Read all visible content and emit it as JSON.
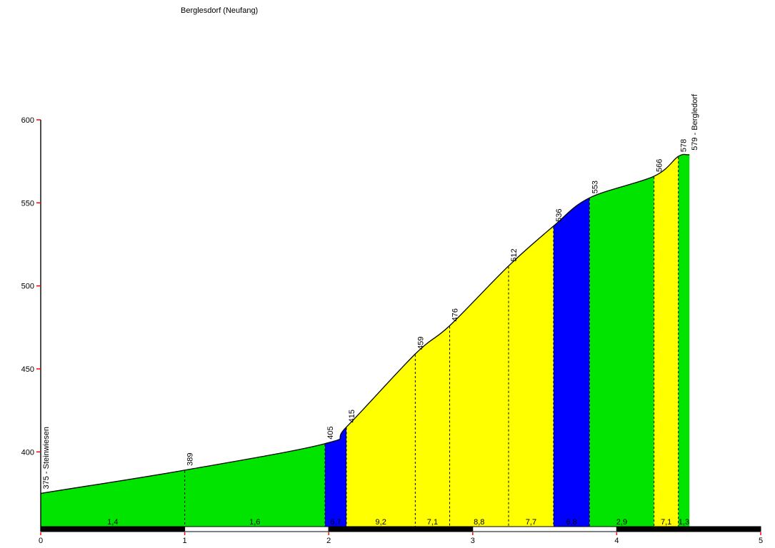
{
  "title": "Berglesdorf (Neufang)",
  "chart_data": {
    "type": "area",
    "title": "Berglesdorf (Neufang)",
    "start_label": "375 - Steinwiesen",
    "end_label": "579 - Bergledorf",
    "x_unit": "km",
    "xlim": [
      0,
      5
    ],
    "x_ticks": [
      "0",
      "1",
      "2",
      "3",
      "4",
      "5"
    ],
    "y_ticks": [
      "400",
      "450",
      "500",
      "550",
      "600"
    ],
    "ylim_display": [
      355,
      605
    ],
    "grid": "off",
    "legend": "none",
    "colors": {
      "green": "#00e400",
      "blue": "#0000ff",
      "yellow": "#ffff00"
    },
    "axis_color": "#000000",
    "tick_mark_color": "#ff0000",
    "km_bar_colors": [
      "#000000",
      "#ffffff",
      "#000000",
      "#ffffff",
      "#000000"
    ],
    "points": [
      {
        "km": 0.0,
        "elev": 375
      },
      {
        "km": 1.0,
        "elev": 389
      },
      {
        "km": 1.974,
        "elev": 405
      },
      {
        "km": 2.123,
        "elev": 415
      },
      {
        "km": 2.601,
        "elev": 459
      },
      {
        "km": 2.84,
        "elev": 476
      },
      {
        "km": 3.249,
        "elev": 512
      },
      {
        "km": 3.561,
        "elev": 536
      },
      {
        "km": 3.811,
        "elev": 553
      },
      {
        "km": 4.259,
        "elev": 566
      },
      {
        "km": 4.428,
        "elev": 578
      },
      {
        "km": 4.505,
        "elev": 579
      }
    ],
    "elevation_labels": [
      "389",
      "405",
      "415",
      "459",
      "476",
      "512",
      "536",
      "553",
      "566",
      "578"
    ],
    "segments": [
      {
        "from_km": 0.0,
        "to_km": 1.0,
        "from_elev": 375,
        "to_elev": 389,
        "gradient": "1,4",
        "color": "green"
      },
      {
        "from_km": 1.0,
        "to_km": 1.974,
        "from_elev": 389,
        "to_elev": 405,
        "gradient": "1,6",
        "color": "green"
      },
      {
        "from_km": 1.974,
        "to_km": 2.123,
        "from_elev": 405,
        "to_elev": 415,
        "gradient": "6,7",
        "color": "blue"
      },
      {
        "from_km": 2.123,
        "to_km": 2.601,
        "from_elev": 415,
        "to_elev": 459,
        "gradient": "9,2",
        "color": "yellow"
      },
      {
        "from_km": 2.601,
        "to_km": 2.84,
        "from_elev": 459,
        "to_elev": 476,
        "gradient": "7,1",
        "color": "yellow"
      },
      {
        "from_km": 2.84,
        "to_km": 3.249,
        "from_elev": 476,
        "to_elev": 512,
        "gradient": "8,8",
        "color": "yellow"
      },
      {
        "from_km": 3.249,
        "to_km": 3.561,
        "from_elev": 512,
        "to_elev": 536,
        "gradient": "7,7",
        "color": "yellow"
      },
      {
        "from_km": 3.561,
        "to_km": 3.811,
        "from_elev": 536,
        "to_elev": 553,
        "gradient": "6,8",
        "color": "blue"
      },
      {
        "from_km": 3.811,
        "to_km": 4.259,
        "from_elev": 553,
        "to_elev": 566,
        "gradient": "2,9",
        "color": "green"
      },
      {
        "from_km": 4.259,
        "to_km": 4.428,
        "from_elev": 566,
        "to_elev": 578,
        "gradient": "7,1",
        "color": "yellow"
      },
      {
        "from_km": 4.428,
        "to_km": 4.505,
        "from_elev": 578,
        "to_elev": 579,
        "gradient": "1,3",
        "color": "green"
      }
    ]
  }
}
